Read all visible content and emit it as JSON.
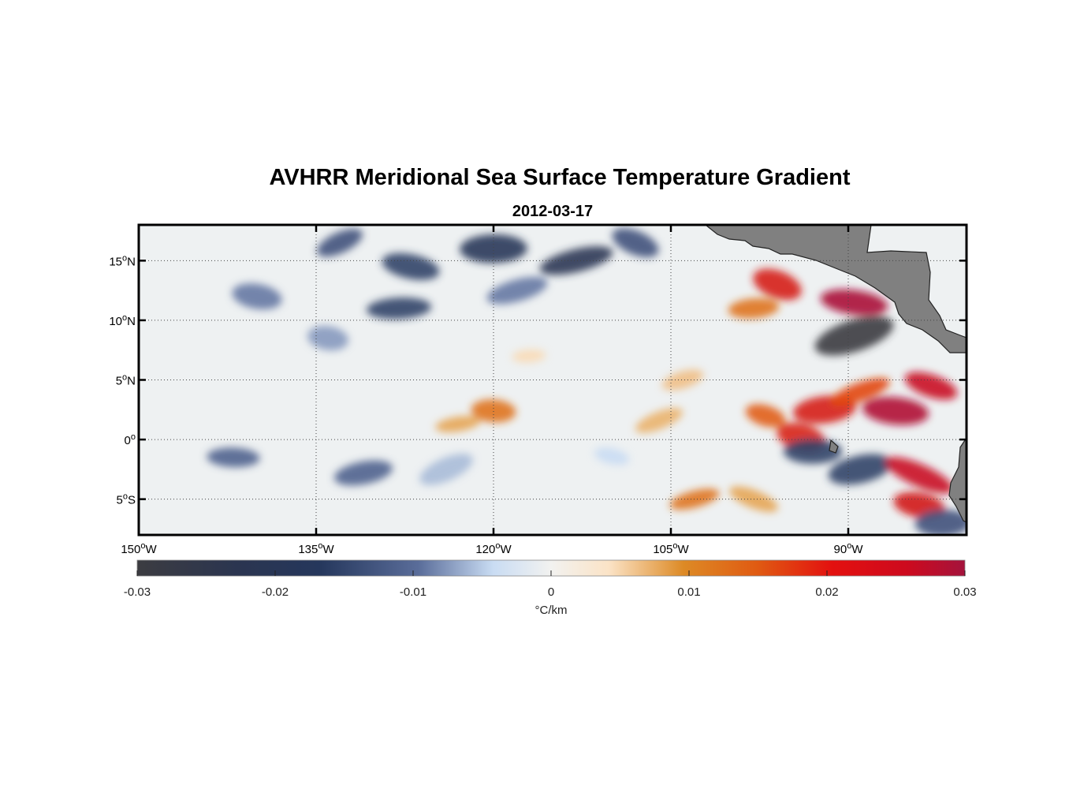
{
  "figure": {
    "title": "AVHRR Meridional Sea Surface Temperature Gradient",
    "subtitle": "2012-03-17"
  },
  "map": {
    "lon_range": [
      -150,
      -80
    ],
    "lat_range": [
      -8,
      18
    ],
    "lon_ticks": [
      {
        "value": -150,
        "num": "150",
        "sup": "o",
        "hemi": "W"
      },
      {
        "value": -135,
        "num": "135",
        "sup": "o",
        "hemi": "W"
      },
      {
        "value": -120,
        "num": "120",
        "sup": "o",
        "hemi": "W"
      },
      {
        "value": -105,
        "num": "105",
        "sup": "o",
        "hemi": "W"
      },
      {
        "value": -90,
        "num": "90",
        "sup": "o",
        "hemi": "W"
      }
    ],
    "lat_ticks": [
      {
        "value": 15,
        "num": "15",
        "sup": "o",
        "hemi": "N"
      },
      {
        "value": 10,
        "num": "10",
        "sup": "o",
        "hemi": "N"
      },
      {
        "value": 5,
        "num": "5",
        "sup": "o",
        "hemi": "N"
      },
      {
        "value": 0,
        "num": "0",
        "sup": "o",
        "hemi": ""
      },
      {
        "value": -5,
        "num": "5",
        "sup": "o",
        "hemi": "S"
      }
    ],
    "grid": "dotted",
    "land_color": "#808080",
    "colormap": [
      "#3c3c41",
      "#25375c",
      "#5a6d9a",
      "#c9dcf3",
      "#f2f2f0",
      "#fbe3c6",
      "#dd8a25",
      "#e3400f",
      "#cd0a1e",
      "#a4133c"
    ]
  },
  "colorbar": {
    "label": "°C/km",
    "range": [
      -0.03,
      0.03
    ],
    "ticks": [
      {
        "value": -0.03,
        "label": "-0.03"
      },
      {
        "value": -0.02,
        "label": "-0.02"
      },
      {
        "value": -0.01,
        "label": "-0.01"
      },
      {
        "value": 0,
        "label": "0"
      },
      {
        "value": 0.01,
        "label": "0.01"
      },
      {
        "value": 0.02,
        "label": "0.02"
      },
      {
        "value": 0.03,
        "label": "0.03"
      }
    ]
  },
  "chart_data": {
    "type": "heatmap",
    "title": "AVHRR Meridional Sea Surface Temperature Gradient",
    "subtitle": "2012-03-17",
    "variable": "meridional SST gradient",
    "units": "°C/km",
    "value_range": [
      -0.03,
      0.03
    ],
    "xlabel": "",
    "ylabel": "",
    "xlim": [
      -150,
      -80
    ],
    "ylim": [
      -8,
      18
    ],
    "features": [
      {
        "lon": -133,
        "lat": 16.5,
        "value": -0.02
      },
      {
        "lon": -127,
        "lat": 14.5,
        "value": -0.022
      },
      {
        "lon": -120,
        "lat": 16,
        "value": -0.024
      },
      {
        "lon": -113,
        "lat": 15,
        "value": -0.025
      },
      {
        "lon": -108,
        "lat": 16.5,
        "value": -0.02
      },
      {
        "lon": -140,
        "lat": 12,
        "value": -0.016
      },
      {
        "lon": -128,
        "lat": 11,
        "value": -0.022
      },
      {
        "lon": -118,
        "lat": 12.5,
        "value": -0.016
      },
      {
        "lon": -96,
        "lat": 13,
        "value": 0.021
      },
      {
        "lon": -89.5,
        "lat": 11.5,
        "value": 0.029
      },
      {
        "lon": -98,
        "lat": 11,
        "value": 0.012
      },
      {
        "lon": -89.5,
        "lat": 8.7,
        "value": -0.03
      },
      {
        "lon": -83,
        "lat": 4.5,
        "value": 0.024
      },
      {
        "lon": -86,
        "lat": 2.4,
        "value": 0.028
      },
      {
        "lon": -92,
        "lat": 2.5,
        "value": 0.021
      },
      {
        "lon": -89,
        "lat": 4,
        "value": 0.016
      },
      {
        "lon": -97,
        "lat": 2,
        "value": 0.014
      },
      {
        "lon": -120,
        "lat": 2.4,
        "value": 0.012
      },
      {
        "lon": -123,
        "lat": 1.3,
        "value": 0.008
      },
      {
        "lon": -106,
        "lat": 1.6,
        "value": 0.007
      },
      {
        "lon": -94,
        "lat": 0.2,
        "value": 0.02
      },
      {
        "lon": -142,
        "lat": -1.5,
        "value": -0.018
      },
      {
        "lon": -131,
        "lat": -2.8,
        "value": -0.018
      },
      {
        "lon": -124,
        "lat": -2.5,
        "value": -0.012
      },
      {
        "lon": -110,
        "lat": -1.4,
        "value": -0.01
      },
      {
        "lon": -93,
        "lat": -1,
        "value": -0.022
      },
      {
        "lon": -89,
        "lat": -2.5,
        "value": -0.022
      },
      {
        "lon": -84,
        "lat": -3,
        "value": 0.024
      },
      {
        "lon": -84,
        "lat": -5.5,
        "value": 0.022
      },
      {
        "lon": -82,
        "lat": -7,
        "value": -0.02
      },
      {
        "lon": -103,
        "lat": -5,
        "value": 0.012
      },
      {
        "lon": -98,
        "lat": -5,
        "value": 0.008
      },
      {
        "lon": -134,
        "lat": 8.5,
        "value": -0.014
      },
      {
        "lon": -117,
        "lat": 7,
        "value": 0.004
      },
      {
        "lon": -104,
        "lat": 5,
        "value": 0.006
      }
    ]
  }
}
